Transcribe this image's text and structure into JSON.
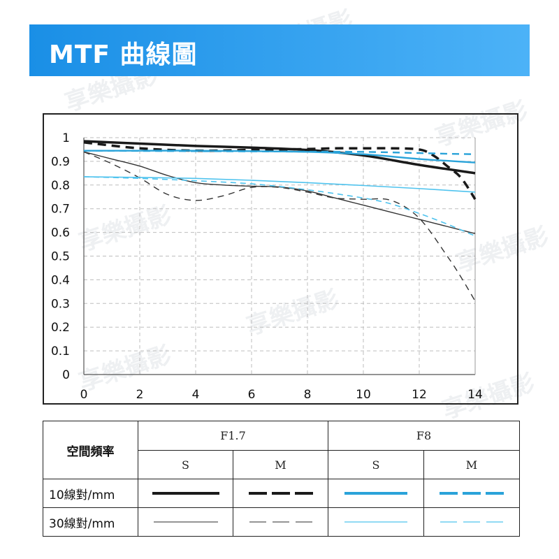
{
  "title": "MTF 曲線圖",
  "watermark_text": "享樂攝影",
  "colors": {
    "title_bg": "#1a8fe6",
    "black": "#1a1a1a",
    "blue": "#2aa3d9",
    "blue_light": "#4fc3ee",
    "grid": "#bdbdbd"
  },
  "chart_data": {
    "type": "line",
    "title": "",
    "xlabel": "",
    "ylabel": "",
    "xlim": [
      0,
      14
    ],
    "ylim": [
      0,
      1
    ],
    "xticks": [
      0,
      2,
      4,
      6,
      8,
      10,
      12,
      14
    ],
    "yticks": [
      0,
      0.1,
      0.2,
      0.3,
      0.4,
      0.5,
      0.6,
      0.7,
      0.8,
      0.9,
      1
    ],
    "ytick_labels": [
      "0",
      "0.1",
      "0.2",
      "0.3",
      "0.4",
      "0.5",
      "0.6",
      "0.7",
      "0.8",
      "0.9",
      "1"
    ],
    "grid": "dashed",
    "series": [
      {
        "key": "f17_10_s",
        "color": "#1a1a1a",
        "width": 3.5,
        "dash": "",
        "x": [
          0,
          2,
          4,
          6,
          8,
          10,
          12,
          14
        ],
        "y": [
          0.985,
          0.975,
          0.965,
          0.958,
          0.948,
          0.925,
          0.885,
          0.85
        ]
      },
      {
        "key": "f17_10_m",
        "color": "#1a1a1a",
        "width": 3.5,
        "dash": "12 8",
        "x": [
          0,
          2,
          4,
          6,
          7,
          8,
          9,
          10,
          11,
          12,
          12.5,
          13,
          13.5,
          14
        ],
        "y": [
          0.98,
          0.955,
          0.945,
          0.948,
          0.95,
          0.952,
          0.955,
          0.955,
          0.955,
          0.95,
          0.925,
          0.88,
          0.83,
          0.74
        ]
      },
      {
        "key": "f17_30_s",
        "color": "#333333",
        "width": 1.4,
        "dash": "",
        "x": [
          0,
          1,
          2,
          3,
          4,
          5,
          6,
          7,
          8,
          9,
          10,
          11,
          12,
          13,
          14
        ],
        "y": [
          0.94,
          0.91,
          0.88,
          0.84,
          0.81,
          0.8,
          0.795,
          0.792,
          0.775,
          0.745,
          0.715,
          0.685,
          0.655,
          0.625,
          0.595
        ]
      },
      {
        "key": "f17_30_m",
        "color": "#333333",
        "width": 1.4,
        "dash": "9 7",
        "x": [
          0,
          1,
          2,
          3,
          4,
          5,
          6,
          7,
          8,
          9,
          10,
          11,
          12,
          13,
          13.5,
          14
        ],
        "y": [
          0.94,
          0.89,
          0.83,
          0.76,
          0.735,
          0.755,
          0.79,
          0.79,
          0.77,
          0.745,
          0.74,
          0.735,
          0.66,
          0.5,
          0.41,
          0.31
        ]
      },
      {
        "key": "f8_10_s",
        "color": "#2aa3d9",
        "width": 2.4,
        "dash": "",
        "x": [
          0,
          2,
          4,
          6,
          8,
          10,
          12,
          14
        ],
        "y": [
          0.945,
          0.945,
          0.945,
          0.943,
          0.94,
          0.93,
          0.91,
          0.895
        ]
      },
      {
        "key": "f8_10_m",
        "color": "#2aa3d9",
        "width": 2.4,
        "dash": "10 7",
        "x": [
          0,
          2,
          4,
          6,
          8,
          10,
          12,
          13,
          14
        ],
        "y": [
          0.945,
          0.944,
          0.943,
          0.942,
          0.941,
          0.94,
          0.935,
          0.932,
          0.93
        ]
      },
      {
        "key": "f8_30_s",
        "color": "#4fc3ee",
        "width": 1.6,
        "dash": "",
        "x": [
          0,
          2,
          4,
          6,
          8,
          10,
          12,
          14
        ],
        "y": [
          0.835,
          0.832,
          0.828,
          0.82,
          0.81,
          0.798,
          0.785,
          0.77
        ]
      },
      {
        "key": "f8_30_m",
        "color": "#4fc3ee",
        "width": 1.6,
        "dash": "8 6",
        "x": [
          0,
          2,
          4,
          6,
          8,
          10,
          11,
          12,
          13,
          14
        ],
        "y": [
          0.835,
          0.828,
          0.818,
          0.805,
          0.78,
          0.745,
          0.72,
          0.68,
          0.635,
          0.585
        ]
      }
    ]
  },
  "legend": {
    "header_freq": "空間頻率",
    "group1": "F1.7",
    "group2": "F8",
    "s": "S",
    "m": "M",
    "row1": "10線對/mm",
    "row2": "30線對/mm"
  }
}
